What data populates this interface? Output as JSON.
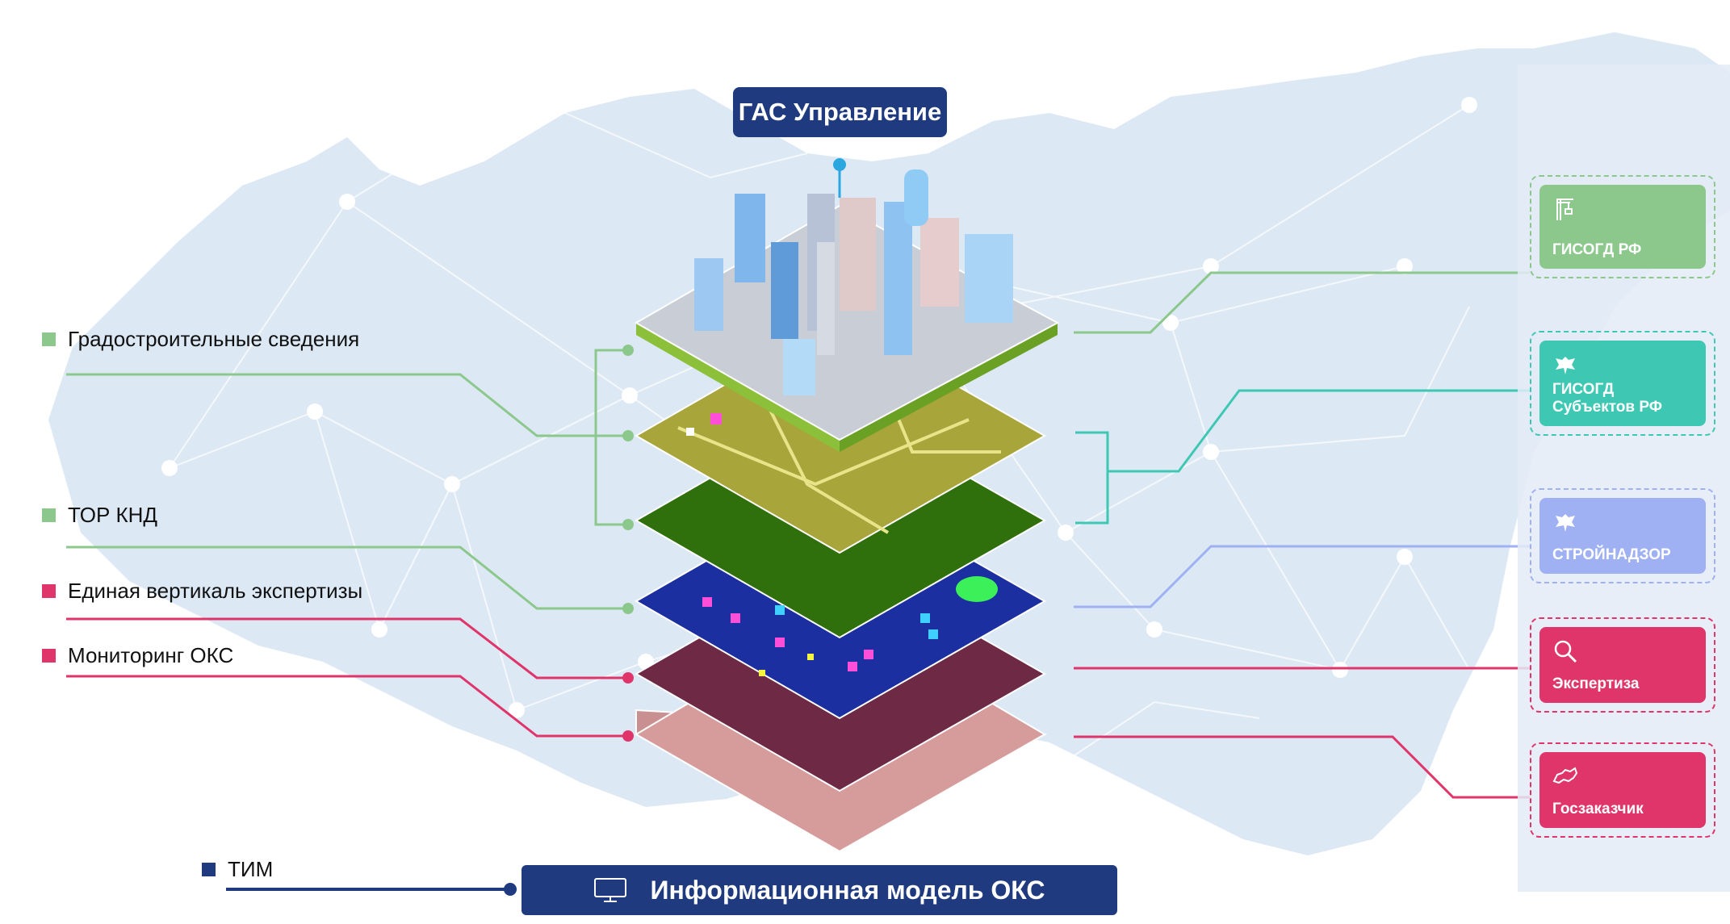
{
  "header": {
    "title": "ГАС Управление"
  },
  "legend": [
    {
      "label": "Градостроительные сведения",
      "color": "#8cc88c"
    },
    {
      "label": "ТОР КНД",
      "color": "#8cc88c"
    },
    {
      "label": "Единая вертикаль экспертизы",
      "color": "#e0356a"
    },
    {
      "label": "Мониторинг ОКС",
      "color": "#e0356a"
    },
    {
      "label": "ТИМ",
      "color": "#1f3a7f"
    }
  ],
  "systems": [
    {
      "label_line1": "ГИСОГД РФ",
      "label_line2": "",
      "color": "#8cc88c",
      "icon": "crane-icon"
    },
    {
      "label_line1": "ГИСОГД",
      "label_line2": "Субъектов РФ",
      "color": "#3ec8b4",
      "icon": "eagle-emblem-icon"
    },
    {
      "label_line1": "СТРОЙНАДЗОР",
      "label_line2": "",
      "color": "#9fb1f3",
      "icon": "eagle-emblem-icon"
    },
    {
      "label_line1": "Экспертиза",
      "label_line2": "",
      "color": "#e0356a",
      "icon": "magnifier-icon"
    },
    {
      "label_line1": "Госзаказчик",
      "label_line2": "",
      "color": "#e0356a",
      "icon": "russia-map-icon"
    }
  ],
  "footer": {
    "title": "Информационная модель ОКС",
    "icon": "monitor-icon"
  },
  "colors": {
    "navy": "#1f3a7f",
    "green": "#8cc88c",
    "teal": "#3ec8b4",
    "lavender": "#9fb1f3",
    "crimson": "#e0356a"
  }
}
